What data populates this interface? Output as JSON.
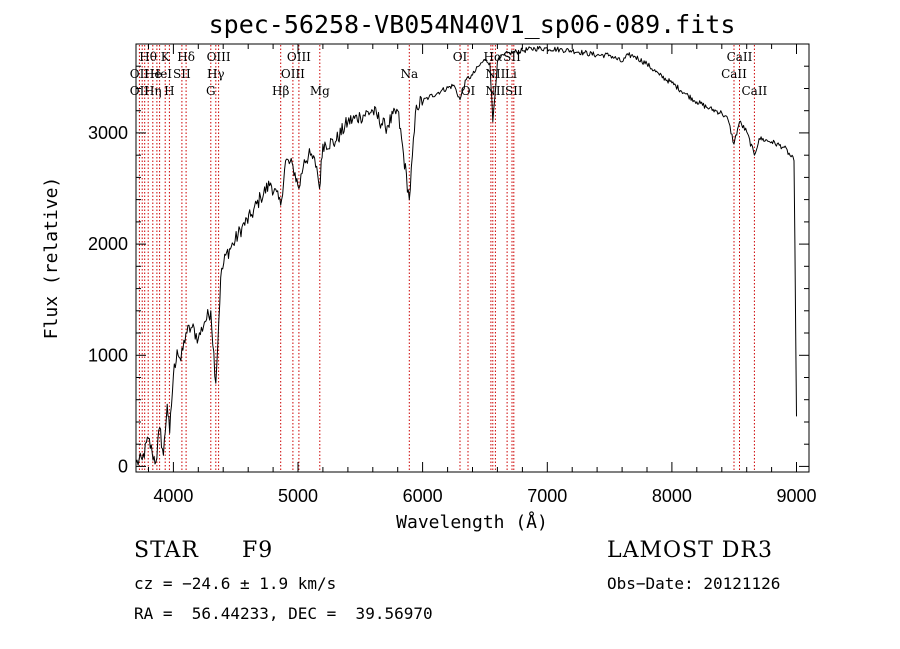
{
  "chart_data": {
    "type": "line",
    "title": "spec-56258-VB054N40V1_sp06-089.fits",
    "xlabel": "Wavelength (Å)",
    "ylabel": "Flux (relative)",
    "xlim": [
      3700,
      9100
    ],
    "ylim": [
      -50,
      3800
    ],
    "x_ticks": [
      4000,
      5000,
      6000,
      7000,
      8000,
      9000
    ],
    "x_tick_labels": [
      "4000",
      "5000",
      "6000",
      "7000",
      "8000",
      "9000"
    ],
    "y_ticks": [
      0,
      1000,
      2000,
      3000
    ],
    "y_tick_labels": [
      "0",
      "1000",
      "2000",
      "3000"
    ],
    "grid": false,
    "series": [
      {
        "name": "flux",
        "x": [
          3700,
          3750,
          3800,
          3830,
          3860,
          3890,
          3920,
          3950,
          3970,
          4000,
          4030,
          4060,
          4100,
          4150,
          4200,
          4250,
          4300,
          4340,
          4380,
          4420,
          4480,
          4550,
          4620,
          4700,
          4780,
          4861,
          4900,
          4960,
          5007,
          5050,
          5100,
          5150,
          5172,
          5200,
          5300,
          5400,
          5500,
          5600,
          5700,
          5800,
          5893,
          5950,
          6050,
          6150,
          6250,
          6300,
          6350,
          6400,
          6450,
          6500,
          6540,
          6563,
          6600,
          6650,
          6700,
          6800,
          6900,
          7000,
          7100,
          7200,
          7300,
          7400,
          7500,
          7600,
          7650,
          7700,
          7800,
          7900,
          8000,
          8100,
          8200,
          8300,
          8400,
          8450,
          8498,
          8542,
          8600,
          8662,
          8700,
          8800,
          8900,
          8980,
          9000
        ],
        "y": [
          30,
          60,
          250,
          120,
          40,
          350,
          100,
          560,
          300,
          820,
          1050,
          950,
          1200,
          1250,
          1150,
          1300,
          1400,
          750,
          1700,
          1900,
          2000,
          2150,
          2250,
          2420,
          2550,
          2350,
          2750,
          2700,
          2500,
          2760,
          2800,
          2700,
          2500,
          2900,
          2920,
          3100,
          3150,
          3200,
          3050,
          3200,
          2400,
          3250,
          3320,
          3380,
          3430,
          3300,
          3480,
          3520,
          3600,
          3660,
          3630,
          3100,
          3640,
          3700,
          3720,
          3740,
          3760,
          3760,
          3750,
          3740,
          3720,
          3700,
          3700,
          3640,
          3700,
          3690,
          3620,
          3520,
          3450,
          3360,
          3280,
          3220,
          3180,
          3120,
          2900,
          3100,
          3010,
          2800,
          2950,
          2920,
          2870,
          2750,
          450
        ]
      }
    ],
    "line_markers": {
      "wavelengths": [
        3727,
        3750,
        3770,
        3798,
        3835,
        3868,
        3889,
        3934,
        3968,
        4068,
        4102,
        4300,
        4340,
        4363,
        4861,
        4959,
        5007,
        5175,
        5893,
        6300,
        6364,
        6548,
        6563,
        6584,
        6678,
        6717,
        6731,
        8498,
        8542,
        8662
      ],
      "labels": [
        {
          "text": "Hθ",
          "x": 3797,
          "row": 1
        },
        {
          "text": "OII",
          "x": 3727,
          "row": 2
        },
        {
          "text": "OII",
          "x": 3727,
          "row": 3
        },
        {
          "text": "He",
          "x": 3835,
          "row": 2
        },
        {
          "text": "Hη",
          "x": 3835,
          "row": 3
        },
        {
          "text": "K",
          "x": 3934,
          "row": 1
        },
        {
          "text": "HeI",
          "x": 3900,
          "row": 2
        },
        {
          "text": "H",
          "x": 3968,
          "row": 3
        },
        {
          "text": "Hδ",
          "x": 4102,
          "row": 1
        },
        {
          "text": "SII",
          "x": 4068,
          "row": 2
        },
        {
          "text": "OIII",
          "x": 4363,
          "row": 1
        },
        {
          "text": "Hγ",
          "x": 4340,
          "row": 2
        },
        {
          "text": "G",
          "x": 4300,
          "row": 3
        },
        {
          "text": "OIII",
          "x": 5007,
          "row": 1
        },
        {
          "text": "OIII",
          "x": 4959,
          "row": 2
        },
        {
          "text": "Hβ",
          "x": 4861,
          "row": 3
        },
        {
          "text": "Mg",
          "x": 5175,
          "row": 3
        },
        {
          "text": "Na",
          "x": 5893,
          "row": 2
        },
        {
          "text": "OI",
          "x": 6300,
          "row": 1
        },
        {
          "text": "OI",
          "x": 6364,
          "row": 3
        },
        {
          "text": "Hα",
          "x": 6563,
          "row": 1
        },
        {
          "text": "SII",
          "x": 6717,
          "row": 1
        },
        {
          "text": "NII",
          "x": 6584,
          "row": 2
        },
        {
          "text": "Li",
          "x": 6708,
          "row": 2
        },
        {
          "text": "NII",
          "x": 6584,
          "row": 3
        },
        {
          "text": "SII",
          "x": 6731,
          "row": 3
        },
        {
          "text": "CaII",
          "x": 8542,
          "row": 1
        },
        {
          "text": "CaII",
          "x": 8498,
          "row": 2
        },
        {
          "text": "CaII",
          "x": 8662,
          "row": 3
        }
      ]
    }
  },
  "info": {
    "object_class": "STAR",
    "subclass": "F9",
    "survey": "LAMOST DR3",
    "redshift": "cz = −24.6 ± 1.9 km/s",
    "obs_date": "Obs−Date: 20121126",
    "coords": "RA =  56.44233, DEC =  39.56970"
  },
  "colors": {
    "spectrum": "#000000",
    "line_marker": "#cc0000",
    "axis": "#000000"
  }
}
